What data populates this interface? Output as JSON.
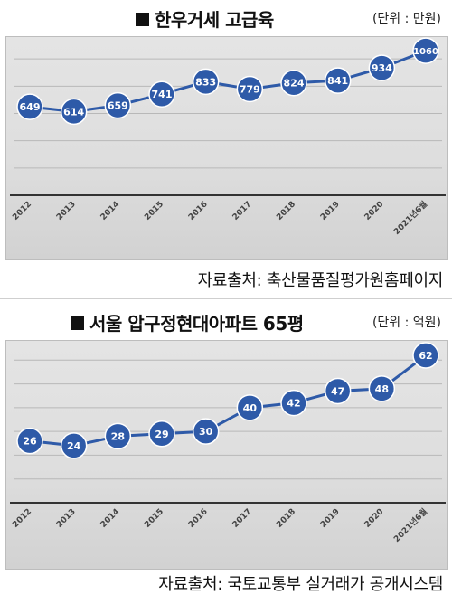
{
  "charts": [
    {
      "title": "한우거세 고급육",
      "unit": "(단위 : 만원)",
      "source": "자료출처: 축산물품질평가원홈페이지",
      "chart_data": {
        "type": "line",
        "categories": [
          "2012",
          "2013",
          "2014",
          "2015",
          "2016",
          "2017",
          "2018",
          "2019",
          "2020",
          "2021년6월"
        ],
        "values": [
          649,
          614,
          659,
          741,
          833,
          779,
          824,
          841,
          934,
          1060
        ],
        "ylim": [
          0,
          1200
        ],
        "grid": true,
        "color": "#2e5aa8"
      }
    },
    {
      "title": "서울 압구정현대아파트 65평",
      "unit": "(단위 : 억원)",
      "source": "자료출처: 국토교통부 실거래가 공개시스템",
      "chart_data": {
        "type": "line",
        "categories": [
          "2012",
          "2013",
          "2014",
          "2015",
          "2016",
          "2017",
          "2018",
          "2019",
          "2020",
          "2021년6월"
        ],
        "values": [
          26,
          24,
          28,
          29,
          30,
          40,
          42,
          47,
          48,
          62
        ],
        "ylim": [
          0,
          70
        ],
        "grid": true,
        "color": "#2e5aa8"
      }
    }
  ]
}
